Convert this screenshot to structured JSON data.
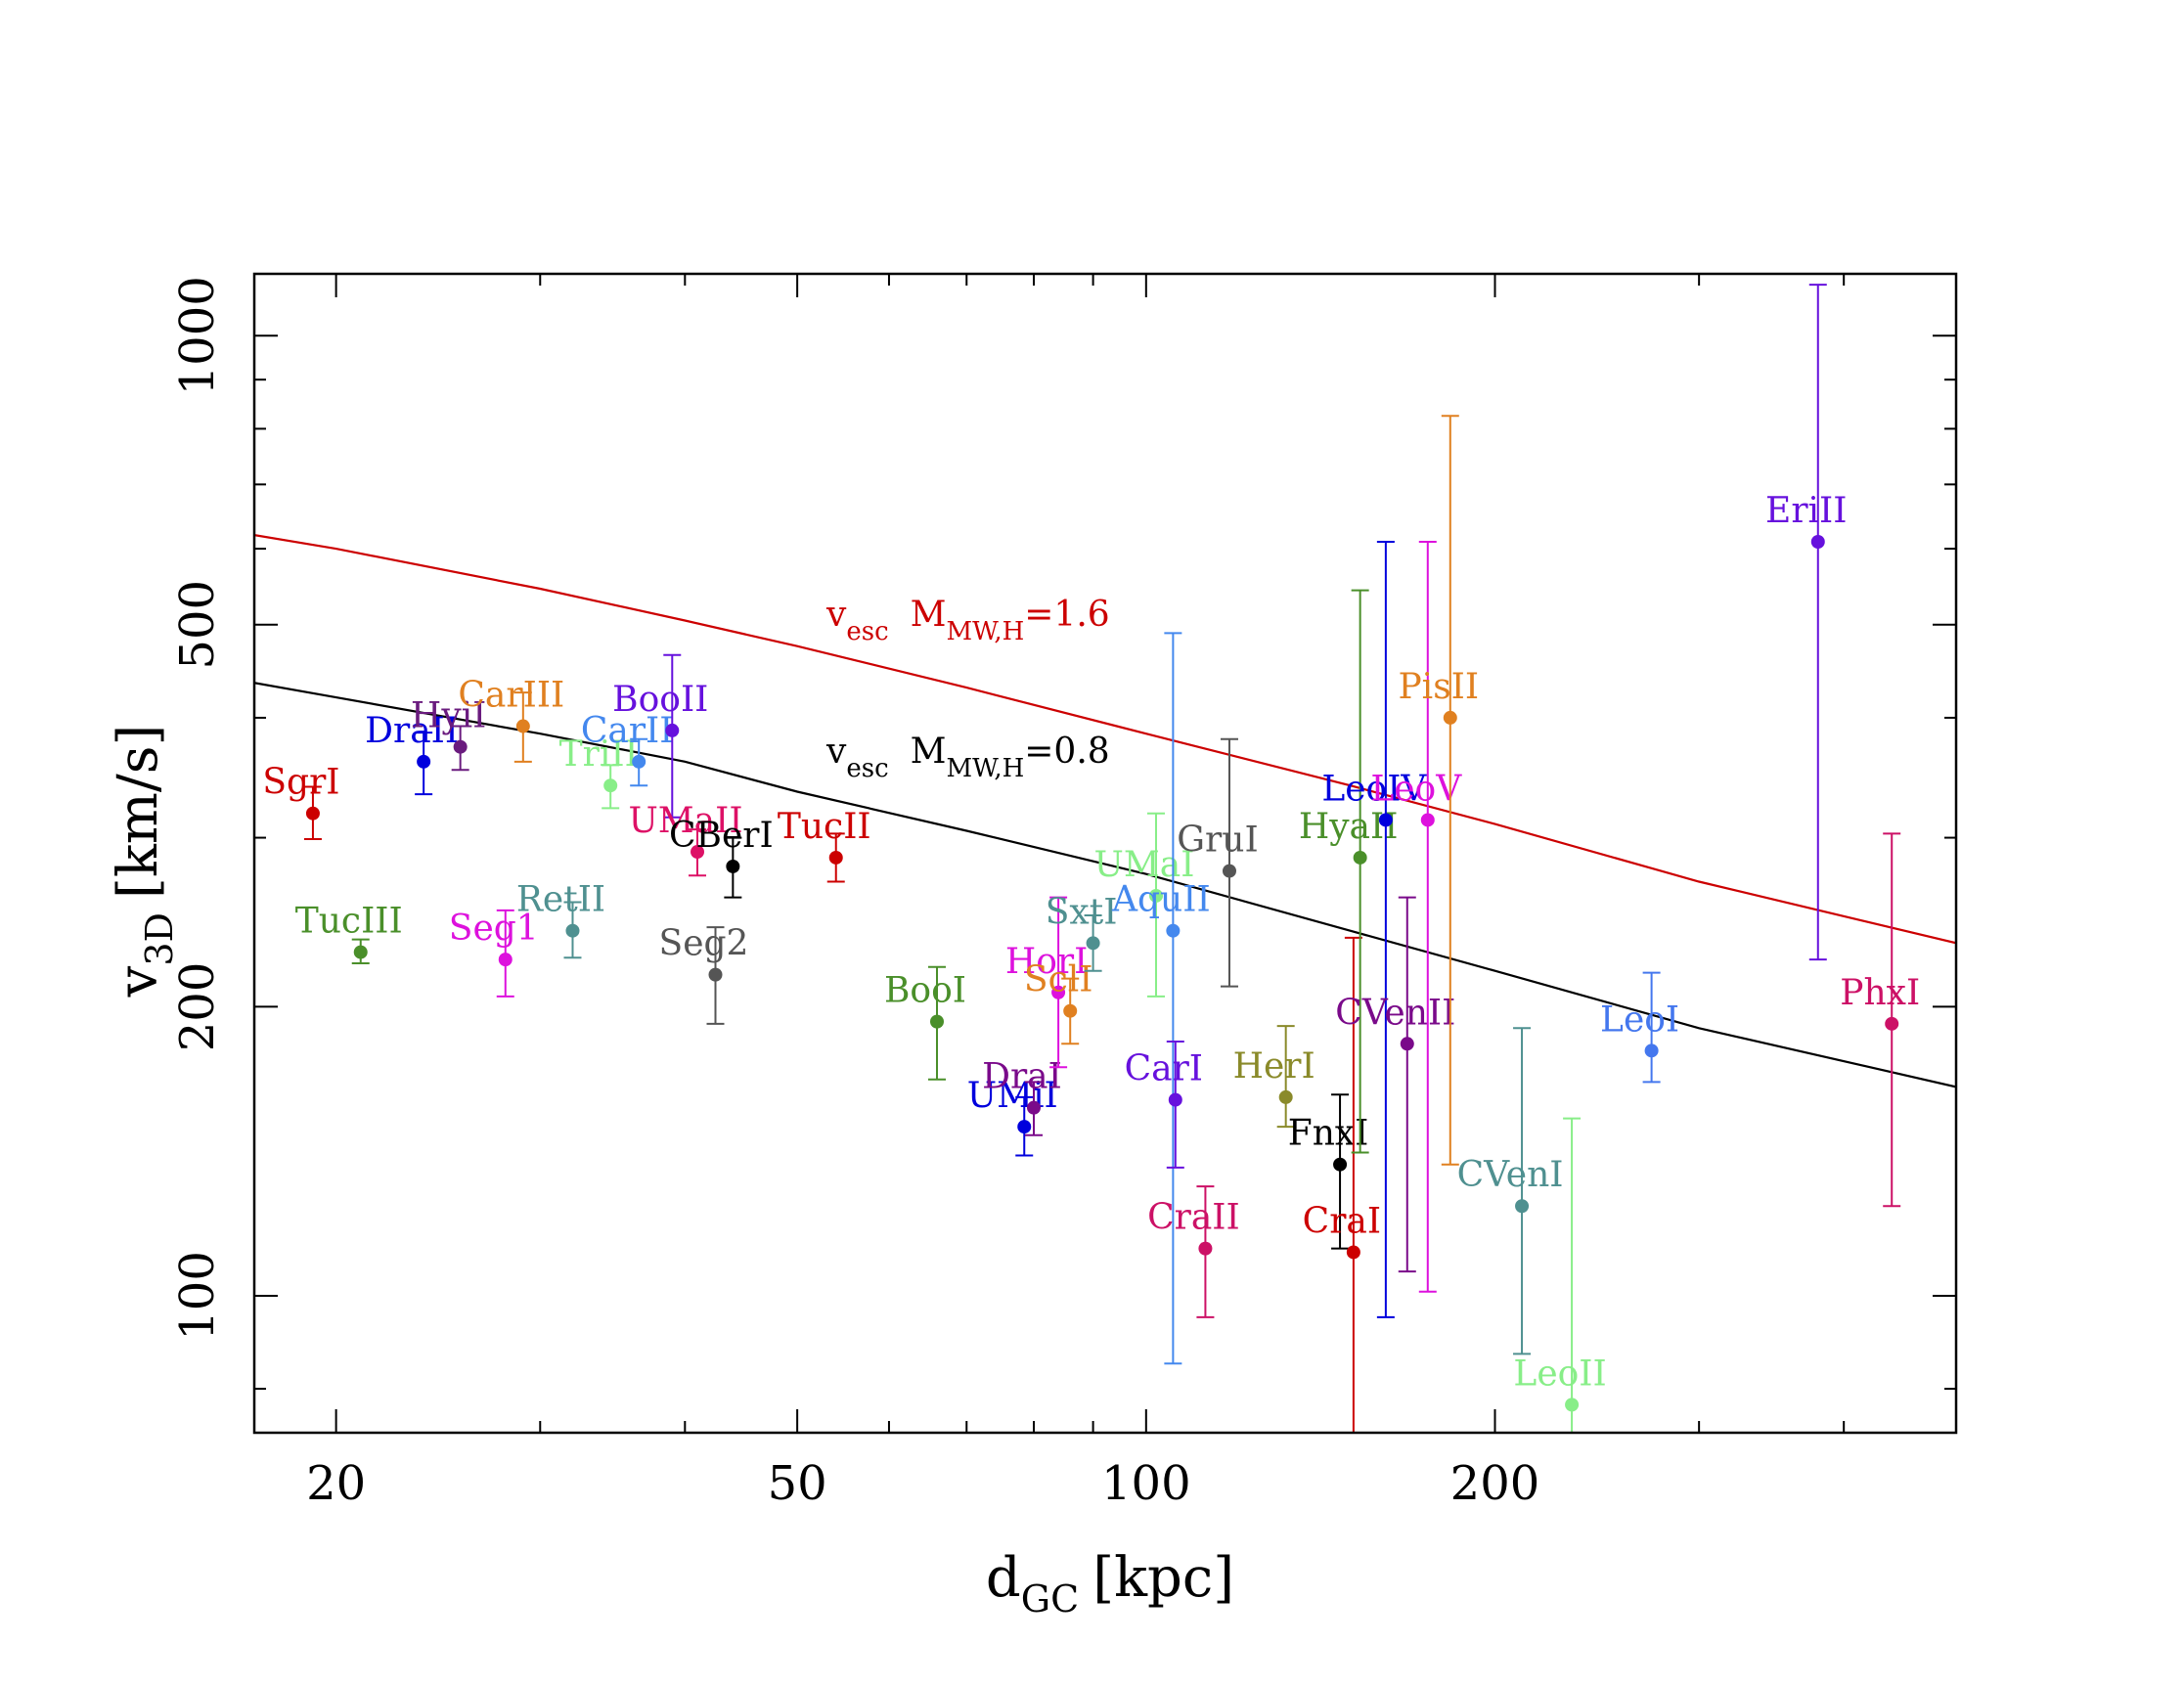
{
  "chart_data": {
    "type": "scatter",
    "x_scale": "log",
    "y_scale": "log",
    "xlim": [
      17,
      500
    ],
    "ylim": [
      72,
      1160
    ],
    "xlabel": "d",
    "xlabel_sub": "GC",
    "xlabel_unit": "[kpc]",
    "ylabel": "v",
    "ylabel_sub": "3D",
    "ylabel_unit": "[km/s]",
    "x_ticks_major": [
      20,
      50,
      100,
      200
    ],
    "x_tick_labels": [
      "20",
      "50",
      "100",
      "200"
    ],
    "x_ticks_minor": [
      30,
      40,
      60,
      70,
      80,
      90,
      300,
      400
    ],
    "y_ticks_major": [
      100,
      200,
      500,
      1000
    ],
    "y_tick_labels": [
      "100",
      "200",
      "500",
      "1000"
    ],
    "y_ticks_minor": [
      80,
      300,
      400,
      600,
      700,
      800,
      900
    ],
    "grid": false,
    "points": [
      {
        "name": "SgrI",
        "x": 19.1,
        "y": 318,
        "ylo": 299,
        "yhi": 339,
        "color": "#cc0000"
      },
      {
        "name": "TucIII",
        "x": 21.0,
        "y": 228,
        "ylo": 222,
        "yhi": 235,
        "color": "#4a8f2a"
      },
      {
        "name": "DraII",
        "x": 23.8,
        "y": 360,
        "ylo": 333,
        "yhi": 386,
        "color": "#0000dd"
      },
      {
        "name": "HyiI",
        "x": 25.6,
        "y": 373,
        "ylo": 353,
        "yhi": 392,
        "color": "#6a1b7e"
      },
      {
        "name": "Seg1",
        "x": 28.0,
        "y": 224,
        "ylo": 205,
        "yhi": 252,
        "color": "#dd11dd"
      },
      {
        "name": "CarIII",
        "x": 29.0,
        "y": 392,
        "ylo": 360,
        "yhi": 425,
        "color": "#e08020"
      },
      {
        "name": "RetII",
        "x": 32.0,
        "y": 240,
        "ylo": 225,
        "yhi": 257,
        "color": "#4f9090"
      },
      {
        "name": "TriII",
        "x": 34.5,
        "y": 340,
        "ylo": 322,
        "yhi": 357,
        "color": "#88ee88"
      },
      {
        "name": "CarII",
        "x": 36.5,
        "y": 360,
        "ylo": 340,
        "yhi": 380,
        "color": "#4488ee"
      },
      {
        "name": "BooII",
        "x": 39.0,
        "y": 388,
        "ylo": 315,
        "yhi": 465,
        "color": "#6611dd"
      },
      {
        "name": "UMaII",
        "x": 41.0,
        "y": 290,
        "ylo": 274,
        "yhi": 306,
        "color": "#dd1166"
      },
      {
        "name": "Seg2",
        "x": 42.5,
        "y": 216,
        "ylo": 192,
        "yhi": 242,
        "color": "#555555"
      },
      {
        "name": "CBerI",
        "x": 44.0,
        "y": 280,
        "ylo": 260,
        "yhi": 300,
        "color": "#000000"
      },
      {
        "name": "TucII",
        "x": 54.0,
        "y": 286,
        "ylo": 270,
        "yhi": 303,
        "color": "#cc0000"
      },
      {
        "name": "BooI",
        "x": 66.0,
        "y": 193,
        "ylo": 168,
        "yhi": 220,
        "color": "#4a8f2a"
      },
      {
        "name": "UMiI",
        "x": 78.5,
        "y": 150,
        "ylo": 140,
        "yhi": 161,
        "color": "#0000dd"
      },
      {
        "name": "DraI",
        "x": 80.0,
        "y": 157,
        "ylo": 147,
        "yhi": 167,
        "color": "#7a0a8a"
      },
      {
        "name": "HorI",
        "x": 84.0,
        "y": 207,
        "ylo": 173,
        "yhi": 260,
        "color": "#dd11dd"
      },
      {
        "name": "SclI",
        "x": 86.0,
        "y": 198,
        "ylo": 183,
        "yhi": 214,
        "color": "#e08020"
      },
      {
        "name": "SxtI",
        "x": 90.0,
        "y": 233,
        "ylo": 218,
        "yhi": 249,
        "color": "#4f9090"
      },
      {
        "name": "UMaI",
        "x": 102.0,
        "y": 261,
        "ylo": 205,
        "yhi": 318,
        "color": "#88ee88"
      },
      {
        "name": "AquII",
        "x": 105.5,
        "y": 240,
        "ylo": 85,
        "yhi": 490,
        "color": "#4488ee"
      },
      {
        "name": "CarI",
        "x": 106.0,
        "y": 160,
        "ylo": 136,
        "yhi": 184,
        "color": "#6611dd"
      },
      {
        "name": "CraII",
        "x": 112.5,
        "y": 112,
        "ylo": 95,
        "yhi": 130,
        "color": "#cc1166"
      },
      {
        "name": "GruI",
        "x": 118.0,
        "y": 277,
        "ylo": 210,
        "yhi": 380,
        "color": "#555555"
      },
      {
        "name": "HerI",
        "x": 132.0,
        "y": 161,
        "ylo": 150,
        "yhi": 191,
        "color": "#8a8a2a"
      },
      {
        "name": "FnxI",
        "x": 147.0,
        "y": 137,
        "ylo": 112,
        "yhi": 162,
        "color": "#000000"
      },
      {
        "name": "CraI",
        "x": 151.0,
        "y": 111,
        "ylo": 72,
        "yhi": 236,
        "color": "#cc0000"
      },
      {
        "name": "HyaII",
        "x": 153.0,
        "y": 286,
        "ylo": 141,
        "yhi": 543,
        "color": "#4a8f2a"
      },
      {
        "name": "LeoIV",
        "x": 161.0,
        "y": 313,
        "ylo": 95,
        "yhi": 610,
        "color": "#0000dd"
      },
      {
        "name": "CVenII",
        "x": 168.0,
        "y": 183,
        "ylo": 106,
        "yhi": 260,
        "color": "#7a0a8a"
      },
      {
        "name": "LeoV",
        "x": 175.0,
        "y": 313,
        "ylo": 101,
        "yhi": 610,
        "color": "#dd11dd"
      },
      {
        "name": "PisII",
        "x": 183.0,
        "y": 400,
        "ylo": 137,
        "yhi": 825,
        "color": "#e08020"
      },
      {
        "name": "CVenI",
        "x": 211.0,
        "y": 124,
        "ylo": 87,
        "yhi": 190,
        "color": "#4f9090"
      },
      {
        "name": "LeoII",
        "x": 233.0,
        "y": 77,
        "ylo": 72,
        "yhi": 153,
        "color": "#88ee88"
      },
      {
        "name": "LeoI",
        "x": 273.0,
        "y": 180,
        "ylo": 167,
        "yhi": 217,
        "color": "#4477ee"
      },
      {
        "name": "EriII",
        "x": 380.0,
        "y": 610,
        "ylo": 224,
        "yhi": 1130,
        "color": "#6611dd"
      },
      {
        "name": "PhxI",
        "x": 440.0,
        "y": 192,
        "ylo": 124,
        "yhi": 303,
        "color": "#cc1166"
      }
    ],
    "series": [
      {
        "name": "v_esc M_MW,H=1.6",
        "label_main": "v",
        "label_sub": "esc",
        "label_mass": "M",
        "label_mass_sub": "MW,H",
        "label_value": "=1.6",
        "color": "#cc0000",
        "x": [
          17,
          20,
          30,
          40,
          50,
          70,
          100,
          150,
          200,
          300,
          500
        ],
        "y": [
          620,
          600,
          545,
          505,
          475,
          430,
          385,
          340,
          310,
          270,
          233
        ]
      },
      {
        "name": "v_esc M_MW,H=0.8",
        "label_main": "v",
        "label_sub": "esc",
        "label_mass": "M",
        "label_mass_sub": "MW,H",
        "label_value": "=0.8",
        "color": "#000000",
        "x": [
          17,
          20,
          30,
          40,
          50,
          70,
          100,
          150,
          200,
          300,
          500
        ],
        "y": [
          435,
          420,
          385,
          360,
          335,
          305,
          275,
          240,
          218,
          190,
          165
        ]
      }
    ]
  }
}
